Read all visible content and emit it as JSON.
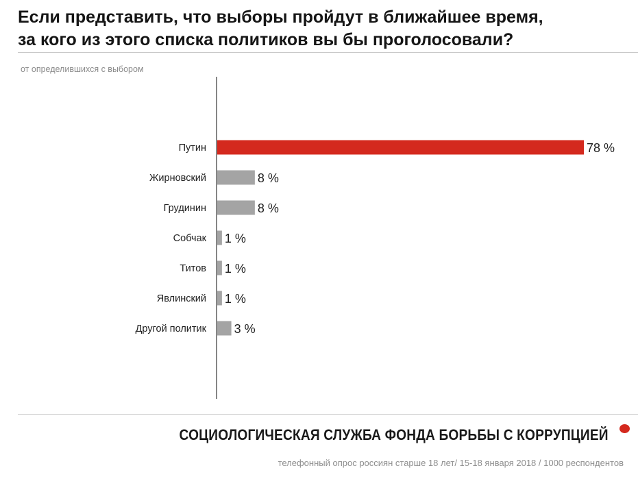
{
  "header": {
    "title_line1": "Если представить, что выборы пройдут в ближайшее время,",
    "title_line2": "за кого из этого списка политиков вы бы проголосовали?",
    "subtitle": "от определившихся с выбором"
  },
  "footer": {
    "brand": "СОЦИОЛОГИЧЕСКАЯ СЛУЖБА ФОНДА БОРЬБЫ С КОРРУПЦИЕЙ",
    "source": "телефонный опрос россиян старше 18 лет/ 15-18 января 2018 / 1000 респондентов",
    "dot_color": "#d4291e"
  },
  "chart_data": {
    "type": "bar",
    "orientation": "horizontal",
    "categories": [
      "Путин",
      "Жирновский",
      "Грудинин",
      "Собчак",
      "Титов",
      "Явлинский",
      "Другой политик"
    ],
    "values": [
      78,
      8,
      8,
      1,
      1,
      1,
      3
    ],
    "value_labels": [
      "78 %",
      "8 %",
      "8 %",
      "1 %",
      "1 %",
      "1 %",
      "3 %"
    ],
    "colors": [
      "#d4291e",
      "#a4a4a4",
      "#a4a4a4",
      "#a4a4a4",
      "#a4a4a4",
      "#a4a4a4",
      "#a4a4a4"
    ],
    "title": "",
    "xlabel": "",
    "ylabel": "",
    "xlim": [
      0,
      78
    ],
    "grid": false,
    "legend": "none"
  }
}
